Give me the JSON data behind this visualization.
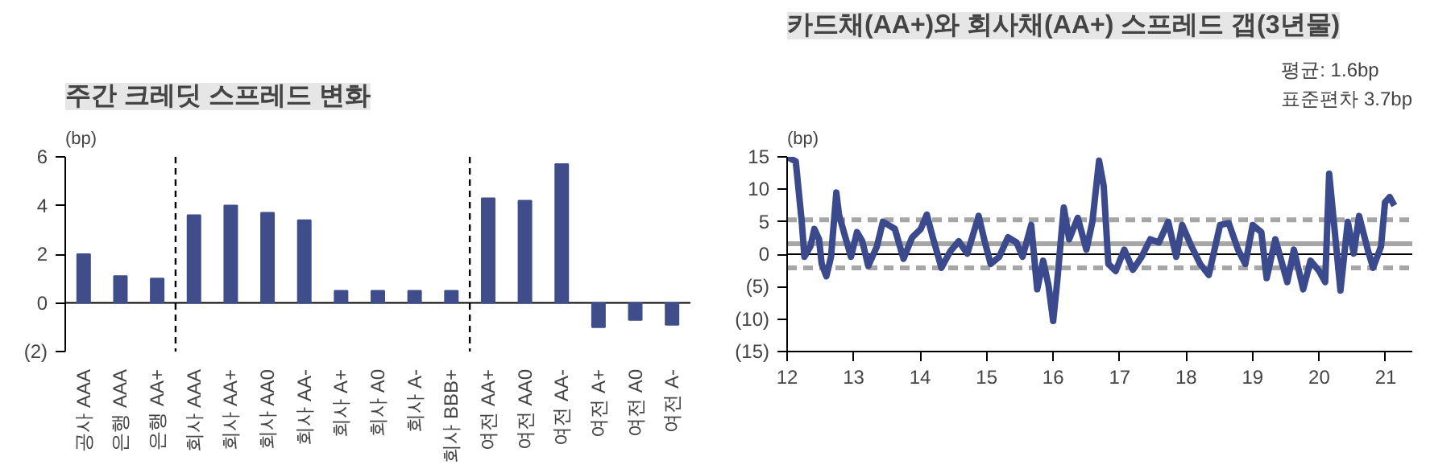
{
  "chart_data": [
    {
      "type": "bar",
      "title": "주간 크레딧 스프레드 변화",
      "ylabel": "(bp)",
      "grid": false,
      "categories": [
        "공사 AAA",
        "은행 AAA",
        "은행 AA+",
        "회사 AAA",
        "회사 AA+",
        "회사 AA0",
        "회사 AA-",
        "회사 A+",
        "회사 A0",
        "회사 A-",
        "회사 BBB+",
        "여전 AA+",
        "여전 AA0",
        "여전 AA-",
        "여전 A+",
        "여전 A0",
        "여전 A-"
      ],
      "series": [
        {
          "color": "#3f4d8a",
          "values": [
            2.0,
            1.1,
            1.0,
            3.6,
            4.0,
            3.7,
            3.4,
            0.5,
            0.5,
            0.5,
            0.5,
            4.3,
            4.2,
            5.7,
            -1.0,
            -0.7,
            -0.9
          ]
        }
      ],
      "ylim": [
        -2,
        6
      ],
      "yticks": [
        {
          "value": -2,
          "label": "(2)"
        },
        0,
        2,
        4,
        6
      ],
      "ref_lines": [
        {
          "axis": "y",
          "value": 0,
          "color": "#000000",
          "line_style": "solid"
        }
      ]
    },
    {
      "type": "line",
      "title": "카드채(AA+)와 회사채(AA+) 스프레드 갭(3년물)",
      "ylabel": "(bp)",
      "grid": false,
      "marker": "none",
      "line_style": "solid",
      "annotations": [
        "평균: 1.6bp",
        "표준편차 3.7bp"
      ],
      "series": [
        {
          "color": "#3b4a8c",
          "x": [
            12.0,
            12.13,
            12.22,
            12.26,
            12.35,
            12.41,
            12.48,
            12.52,
            12.59,
            12.66,
            12.74,
            12.78,
            12.87,
            12.96,
            13.05,
            13.13,
            13.22,
            13.35,
            13.44,
            13.62,
            13.75,
            13.88,
            14.01,
            14.1,
            14.19,
            14.32,
            14.45,
            14.58,
            14.71,
            14.88,
            14.97,
            15.06,
            15.19,
            15.32,
            15.45,
            15.54,
            15.67,
            15.76,
            15.85,
            15.93,
            16.0,
            16.06,
            16.16,
            16.24,
            16.37,
            16.5,
            16.59,
            16.69,
            16.76,
            16.83,
            16.94,
            17.07,
            17.2,
            17.33,
            17.46,
            17.59,
            17.73,
            17.85,
            17.94,
            18.08,
            18.21,
            18.34,
            18.51,
            18.64,
            18.78,
            18.89,
            19.0,
            19.13,
            19.21,
            19.34,
            19.52,
            19.62,
            19.76,
            19.87,
            20.0,
            20.09,
            20.15,
            20.22,
            20.32,
            20.43,
            20.52,
            20.6,
            20.73,
            20.81,
            20.93,
            20.99,
            21.06,
            21.13
          ],
          "values": [
            15,
            14.3,
            5,
            -0.4,
            1.2,
            3.9,
            2.3,
            -1.5,
            -3.4,
            -0.4,
            9.5,
            6.1,
            2.8,
            -0.4,
            3.4,
            2.0,
            -1.8,
            1.2,
            5.0,
            3.9,
            -0.7,
            2.6,
            3.9,
            6.1,
            2.6,
            -2.1,
            0.4,
            2.0,
            0.1,
            5.9,
            2.0,
            -1.5,
            -0.4,
            2.6,
            1.8,
            -0.4,
            4.5,
            -5.4,
            -1.0,
            -4.8,
            -10.3,
            -4.3,
            7.2,
            2.3,
            5.6,
            0.7,
            5.0,
            14.4,
            10.5,
            -1.5,
            -2.6,
            0.7,
            -2.4,
            -0.4,
            2.3,
            1.8,
            5.0,
            -0.4,
            4.5,
            1.2,
            -1.5,
            -3.2,
            4.5,
            4.8,
            0.7,
            -1.5,
            4.5,
            3.4,
            -3.7,
            2.3,
            -4.3,
            0.7,
            -5.4,
            -1.0,
            -2.6,
            -4.3,
            12.4,
            5.0,
            -5.6,
            5.0,
            0.1,
            5.9,
            0.7,
            -2.1,
            1.2,
            8.0,
            8.8,
            7.5
          ]
        }
      ],
      "xlim": [
        12,
        21.4
      ],
      "xticks": [
        12,
        13,
        14,
        15,
        16,
        17,
        18,
        19,
        20,
        21
      ],
      "ylim": [
        -15,
        15
      ],
      "yticks": [
        {
          "value": -15,
          "label": "(15)"
        },
        {
          "value": -10,
          "label": "(10)"
        },
        {
          "value": -5,
          "label": "(5)"
        },
        0,
        5,
        10,
        15
      ],
      "ref_lines": [
        {
          "axis": "y",
          "value": 0,
          "color": "#000000",
          "line_style": "solid"
        },
        {
          "axis": "y",
          "value": 1.6,
          "color": "#a6a6a6",
          "line_style": "solid"
        },
        {
          "axis": "y",
          "value": 5.3,
          "color": "#a6a6a6",
          "line_style": "dashed"
        },
        {
          "axis": "y",
          "value": -2.1,
          "color": "#a6a6a6",
          "line_style": "dashed"
        }
      ]
    }
  ]
}
